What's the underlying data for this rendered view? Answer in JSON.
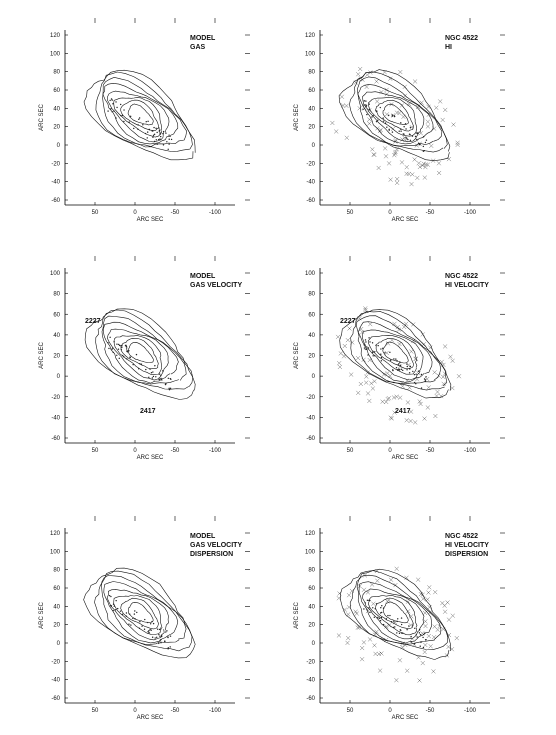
{
  "panels": [
    {
      "label": [
        "MODEL",
        "GAS"
      ],
      "yticks": [
        "120",
        "100",
        "80",
        "60",
        "40",
        "20",
        "0",
        "-20",
        "-40",
        "-60"
      ],
      "xticks": [
        "50",
        "0",
        "-50",
        "-100"
      ],
      "xlabel": "ARC SEC",
      "ylabel": "ARC SEC",
      "annotations": []
    },
    {
      "label": [
        "NGC 4522",
        "HI"
      ],
      "yticks": [
        "120",
        "100",
        "80",
        "60",
        "40",
        "20",
        "0",
        "-20",
        "-40",
        "-60"
      ],
      "xticks": [
        "50",
        "0",
        "-50",
        "-100"
      ],
      "xlabel": "ARC SEC",
      "ylabel": "ARC SEC",
      "annotations": []
    },
    {
      "label": [
        "MODEL",
        "GAS VELOCITY"
      ],
      "yticks": [
        "100",
        "80",
        "60",
        "40",
        "20",
        "0",
        "-20",
        "-40",
        "-60"
      ],
      "xticks": [
        "50",
        "0",
        "-50",
        "-100"
      ],
      "xlabel": "ARC SEC",
      "ylabel": "ARC SEC",
      "annotations": [
        "2227",
        "2417"
      ]
    },
    {
      "label": [
        "NGC 4522",
        "HI VELOCITY"
      ],
      "yticks": [
        "100",
        "80",
        "60",
        "40",
        "20",
        "0",
        "-20",
        "-40",
        "-60"
      ],
      "xticks": [
        "50",
        "0",
        "-50",
        "-100"
      ],
      "xlabel": "ARC SEC",
      "ylabel": "ARC SEC",
      "annotations": [
        "2227",
        "2417"
      ]
    },
    {
      "label": [
        "MODEL",
        "GAS VELOCITY",
        "DISPERSION"
      ],
      "yticks": [
        "120",
        "100",
        "80",
        "60",
        "40",
        "20",
        "0",
        "-20",
        "-40",
        "-60"
      ],
      "xticks": [
        "50",
        "0",
        "-50",
        "-100"
      ],
      "xlabel": "ARC SEC",
      "ylabel": "ARC SEC",
      "annotations": []
    },
    {
      "label": [
        "NGC 4522",
        "HI VELOCITY",
        "DISPERSION"
      ],
      "yticks": [
        "120",
        "100",
        "80",
        "60",
        "40",
        "20",
        "0",
        "-20",
        "-40",
        "-60"
      ],
      "xticks": [
        "50",
        "0",
        "-50",
        "-100"
      ],
      "xlabel": "ARC SEC",
      "ylabel": "ARC SEC",
      "annotations": []
    }
  ]
}
